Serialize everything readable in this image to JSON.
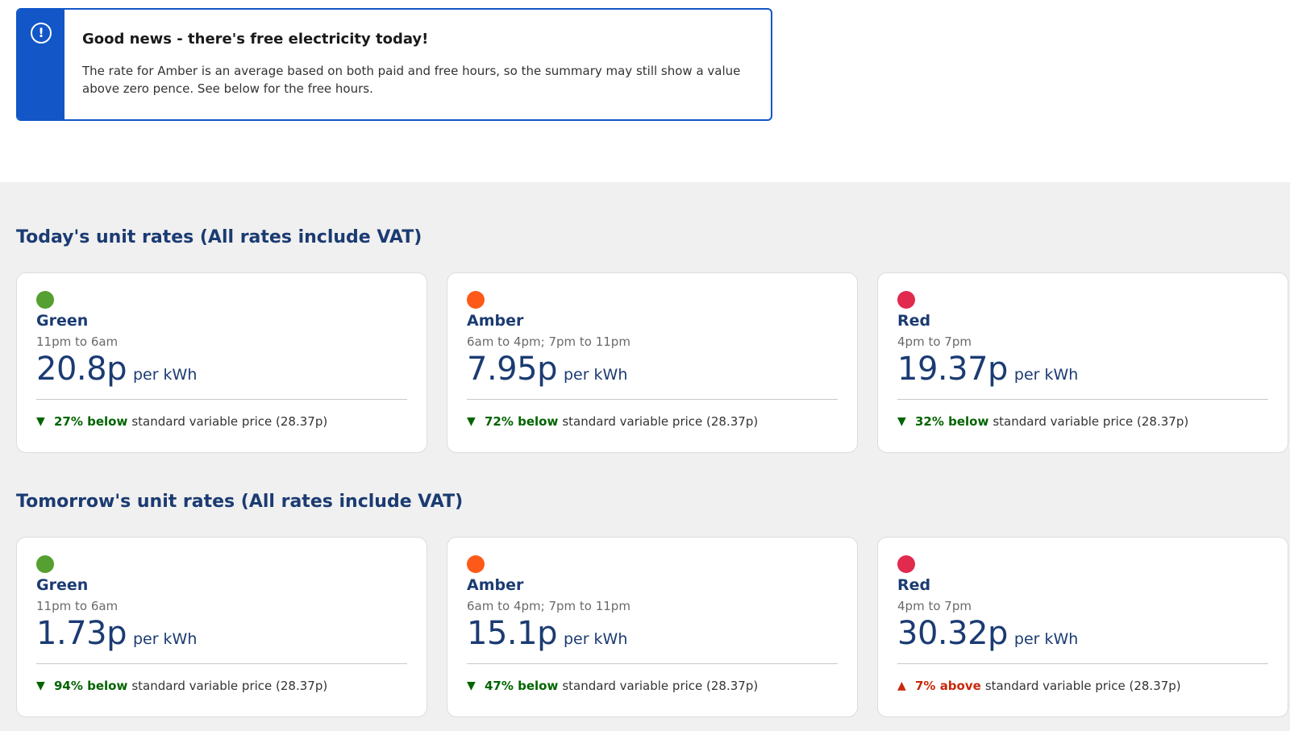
{
  "alert": {
    "icon": "info-icon",
    "title": "Good news - there's free electricity today!",
    "text": "The rate for Amber is an average based on both paid and free hours, so the summary may still show a value above zero pence. See below for the free hours."
  },
  "colors": {
    "green": "#55a030",
    "amber": "#fd5a1a",
    "red": "#e12a4e",
    "accent": "#1256c7",
    "heading": "#1b3b72"
  },
  "today": {
    "title": "Today's unit rates (All rates include VAT)",
    "cards": [
      {
        "name": "Green",
        "hours": "11pm to 6am",
        "price": "20.8p",
        "unit": "per kWh",
        "pct": "27% below",
        "direction": "down",
        "compare": "standard variable price (28.37p)"
      },
      {
        "name": "Amber",
        "hours": "6am to 4pm; 7pm to 11pm",
        "price": "7.95p",
        "unit": "per kWh",
        "pct": "72% below",
        "direction": "down",
        "compare": "standard variable price (28.37p)"
      },
      {
        "name": "Red",
        "hours": "4pm to 7pm",
        "price": "19.37p",
        "unit": "per kWh",
        "pct": "32% below",
        "direction": "down",
        "compare": "standard variable price (28.37p)"
      }
    ]
  },
  "tomorrow": {
    "title": "Tomorrow's unit rates (All rates include VAT)",
    "cards": [
      {
        "name": "Green",
        "hours": "11pm to 6am",
        "price": "1.73p",
        "unit": "per kWh",
        "pct": "94% below",
        "direction": "down",
        "compare": "standard variable price (28.37p)"
      },
      {
        "name": "Amber",
        "hours": "6am to 4pm; 7pm to 11pm",
        "price": "15.1p",
        "unit": "per kWh",
        "pct": "47% below",
        "direction": "down",
        "compare": "standard variable price (28.37p)"
      },
      {
        "name": "Red",
        "hours": "4pm to 7pm",
        "price": "30.32p",
        "unit": "per kWh",
        "pct": "7% above",
        "direction": "up",
        "compare": "standard variable price (28.37p)"
      }
    ]
  }
}
